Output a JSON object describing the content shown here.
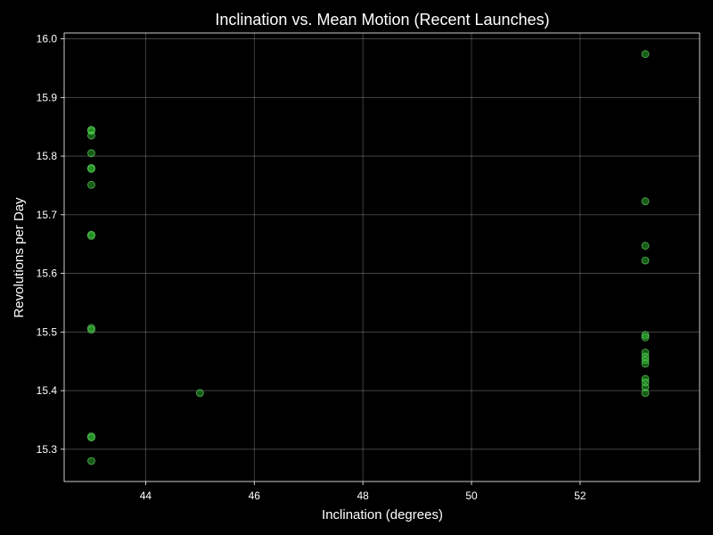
{
  "chart_data": {
    "type": "scatter",
    "title": "Inclination vs. Mean Motion (Recent Launches)",
    "xlabel": "Inclination (degrees)",
    "ylabel": "Revolutions per Day",
    "xlim": [
      42.5,
      54.2
    ],
    "ylim": [
      15.245,
      16.01
    ],
    "xticks": [
      44,
      46,
      48,
      50,
      52
    ],
    "yticks": [
      15.3,
      15.4,
      15.5,
      15.6,
      15.7,
      15.8,
      15.9,
      16.0
    ],
    "grid": true,
    "colors": {
      "background": "#000000",
      "point_fill": "#32cd32",
      "point_edge": "#7dff7d",
      "text": "#ffffff"
    },
    "points": [
      {
        "x": 43.0,
        "y": 15.845
      },
      {
        "x": 43.0,
        "y": 15.843
      },
      {
        "x": 43.0,
        "y": 15.835
      },
      {
        "x": 43.0,
        "y": 15.805
      },
      {
        "x": 43.0,
        "y": 15.78
      },
      {
        "x": 43.0,
        "y": 15.778
      },
      {
        "x": 43.0,
        "y": 15.751
      },
      {
        "x": 43.0,
        "y": 15.666
      },
      {
        "x": 43.0,
        "y": 15.664
      },
      {
        "x": 43.0,
        "y": 15.507
      },
      {
        "x": 43.0,
        "y": 15.504
      },
      {
        "x": 43.0,
        "y": 15.322
      },
      {
        "x": 43.0,
        "y": 15.32
      },
      {
        "x": 43.0,
        "y": 15.28
      },
      {
        "x": 45.0,
        "y": 15.396
      },
      {
        "x": 53.2,
        "y": 15.974
      },
      {
        "x": 53.2,
        "y": 15.723
      },
      {
        "x": 53.2,
        "y": 15.647
      },
      {
        "x": 53.2,
        "y": 15.622
      },
      {
        "x": 53.2,
        "y": 15.495
      },
      {
        "x": 53.2,
        "y": 15.491
      },
      {
        "x": 53.2,
        "y": 15.465
      },
      {
        "x": 53.2,
        "y": 15.458
      },
      {
        "x": 53.2,
        "y": 15.452
      },
      {
        "x": 53.2,
        "y": 15.446
      },
      {
        "x": 53.2,
        "y": 15.42
      },
      {
        "x": 53.2,
        "y": 15.414
      },
      {
        "x": 53.2,
        "y": 15.406
      },
      {
        "x": 53.2,
        "y": 15.396
      }
    ]
  }
}
